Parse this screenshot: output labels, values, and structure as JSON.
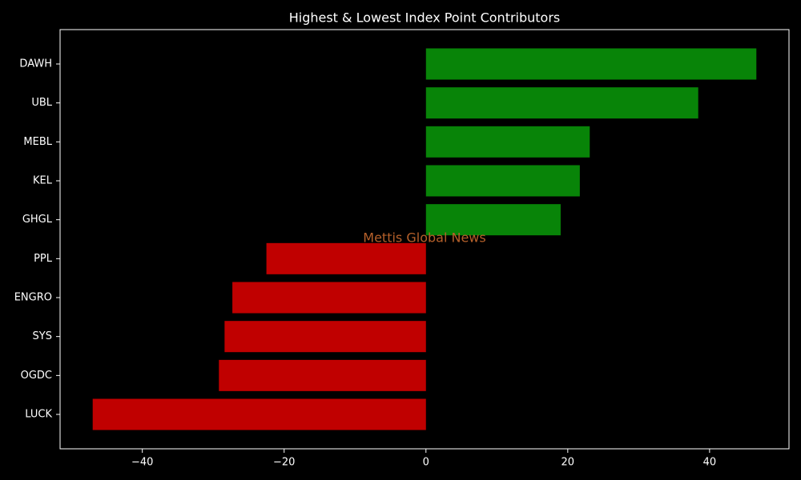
{
  "chart_data": {
    "type": "barh",
    "title": "Highest & Lowest Index Point Contributors",
    "categories": [
      "DAWH",
      "UBL",
      "MEBL",
      "KEL",
      "GHGL",
      "PPL",
      "ENGRO",
      "SYS",
      "OGDC",
      "LUCK"
    ],
    "values": [
      46.6,
      38.4,
      23.1,
      21.7,
      19.0,
      -22.5,
      -27.3,
      -28.4,
      -29.2,
      -47.0
    ],
    "colors": [
      "#088408",
      "#088408",
      "#088408",
      "#088408",
      "#088408",
      "#c00000",
      "#c00000",
      "#c00000",
      "#c00000",
      "#c00000"
    ],
    "xlim": [
      -51.6,
      51.2
    ],
    "xticks": [
      {
        "value": -40,
        "label": "−40"
      },
      {
        "value": -20,
        "label": "−20"
      },
      0,
      20,
      40
    ],
    "watermark": "Mettis Global News"
  }
}
